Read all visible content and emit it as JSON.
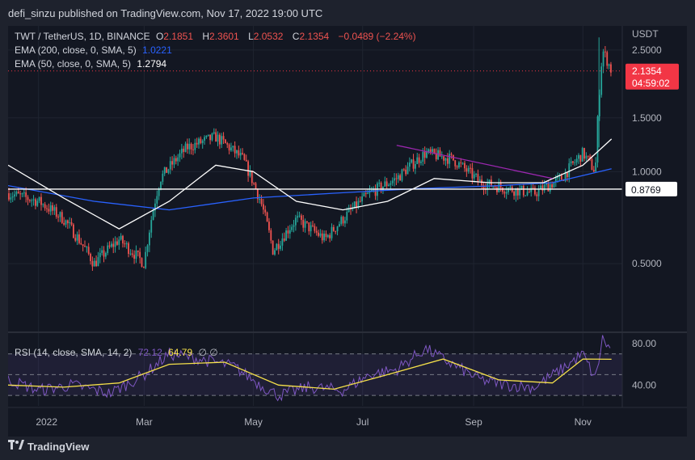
{
  "header": {
    "published": "defi_sinzu published on TradingView.com, Nov 17, 2022 19:00 UTC"
  },
  "footer": {
    "brand": "TradingView"
  },
  "legend": {
    "symbol": "TWT / TetherUS, 1D, BINANCE",
    "o_label": "O",
    "o": "2.1851",
    "h_label": "H",
    "h": "2.3601",
    "l_label": "L",
    "l": "2.0532",
    "c_label": "C",
    "c": "2.1354",
    "change": "−0.0489 (−2.24%)",
    "ema200_label": "EMA (200, close, 0, SMA, 5)",
    "ema200": "1.0221",
    "ema50_label": "EMA (50, close, 0, SMA, 5)",
    "ema50": "1.2794",
    "rsi_label": "RSI (14, close, SMA, 14, 2)",
    "rsi": "72.12",
    "rsi_ma": "64.79",
    "rsi_extra": "∅ ∅"
  },
  "colors": {
    "up": "#26a69a",
    "down": "#ef5350",
    "ema200": "#2962ff",
    "ema50": "#ffffff",
    "rsi": "#7e57c2",
    "rsi_ma": "#f5e04a",
    "price_tag": "#f23645",
    "trendline": "#9c27b0"
  },
  "chart_data": [
    {
      "type": "candlestick",
      "title": "TWT / TetherUS, 1D, BINANCE",
      "ylabel": "USDT",
      "y_ticks": [
        "2.5000",
        "1.5000",
        "1.0000",
        "0.5000"
      ],
      "x_ticks": [
        "2022",
        "Mar",
        "May",
        "Jul",
        "Sep",
        "Nov"
      ],
      "ylim": [
        0.3,
        3.0
      ],
      "scale": "log",
      "grid": true,
      "last_price": "2.1354",
      "countdown": "04:59:02",
      "support_level": "0.8769",
      "approx_close_path": {
        "x": [
          "2021-12-15",
          "2022-01-01",
          "2022-01-15",
          "2022-02-01",
          "2022-02-15",
          "2022-03-01",
          "2022-03-10",
          "2022-03-25",
          "2022-04-10",
          "2022-04-25",
          "2022-05-05",
          "2022-05-12",
          "2022-05-25",
          "2022-06-10",
          "2022-06-25",
          "2022-07-05",
          "2022-07-20",
          "2022-08-05",
          "2022-08-20",
          "2022-09-05",
          "2022-09-20",
          "2022-10-05",
          "2022-10-20",
          "2022-11-01",
          "2022-11-08",
          "2022-11-12",
          "2022-11-17"
        ],
        "y": [
          0.85,
          0.8,
          0.7,
          0.5,
          0.6,
          0.5,
          0.95,
          1.2,
          1.3,
          1.1,
          0.8,
          0.55,
          0.7,
          0.6,
          0.75,
          0.85,
          0.95,
          1.15,
          1.1,
          0.92,
          0.88,
          0.85,
          0.95,
          1.15,
          1.0,
          2.5,
          2.1354
        ]
      },
      "series": [
        {
          "name": "EMA (200, close, 0, SMA, 5)",
          "x": [
            "2021-12-15",
            "2022-02-01",
            "2022-03-15",
            "2022-05-01",
            "2022-06-15",
            "2022-08-01",
            "2022-09-15",
            "2022-10-15",
            "2022-11-17"
          ],
          "y": [
            0.9,
            0.8,
            0.75,
            0.82,
            0.85,
            0.88,
            0.9,
            0.92,
            1.0221
          ]
        },
        {
          "name": "EMA (50, close, 0, SMA, 5)",
          "x": [
            "2021-12-15",
            "2022-01-15",
            "2022-02-15",
            "2022-03-15",
            "2022-04-10",
            "2022-05-01",
            "2022-05-25",
            "2022-06-20",
            "2022-07-15",
            "2022-08-10",
            "2022-09-10",
            "2022-10-10",
            "2022-11-01",
            "2022-11-17"
          ],
          "y": [
            1.05,
            0.82,
            0.65,
            0.8,
            1.05,
            1.0,
            0.8,
            0.75,
            0.8,
            0.95,
            0.92,
            0.92,
            1.05,
            1.2794
          ]
        }
      ]
    },
    {
      "type": "line",
      "title": "RSI (14, close, SMA, 14, 2)",
      "y_ticks": [
        "80.00",
        "40.00"
      ],
      "ylim": [
        20,
        90
      ],
      "bands": [
        70,
        50,
        30
      ],
      "series": [
        {
          "name": "RSI",
          "last": "72.12",
          "x": [
            "2021-12-15",
            "2022-01-01",
            "2022-01-20",
            "2022-02-10",
            "2022-03-01",
            "2022-03-15",
            "2022-04-01",
            "2022-04-20",
            "2022-05-05",
            "2022-05-15",
            "2022-06-01",
            "2022-06-20",
            "2022-07-05",
            "2022-07-20",
            "2022-08-05",
            "2022-08-20",
            "2022-09-05",
            "2022-09-20",
            "2022-10-05",
            "2022-10-20",
            "2022-11-01",
            "2022-11-08",
            "2022-11-12",
            "2022-11-17"
          ],
          "y": [
            45,
            35,
            40,
            32,
            50,
            70,
            65,
            58,
            40,
            30,
            38,
            35,
            50,
            55,
            75,
            60,
            45,
            40,
            38,
            55,
            70,
            45,
            85,
            72.12
          ]
        },
        {
          "name": "RSI MA",
          "last": "64.79",
          "x": [
            "2021-12-15",
            "2022-01-15",
            "2022-02-15",
            "2022-03-15",
            "2022-04-15",
            "2022-05-15",
            "2022-06-15",
            "2022-07-15",
            "2022-08-15",
            "2022-09-15",
            "2022-10-15",
            "2022-11-01",
            "2022-11-17"
          ],
          "y": [
            40,
            38,
            42,
            60,
            62,
            40,
            36,
            50,
            65,
            45,
            42,
            65,
            64.79
          ]
        }
      ]
    }
  ]
}
